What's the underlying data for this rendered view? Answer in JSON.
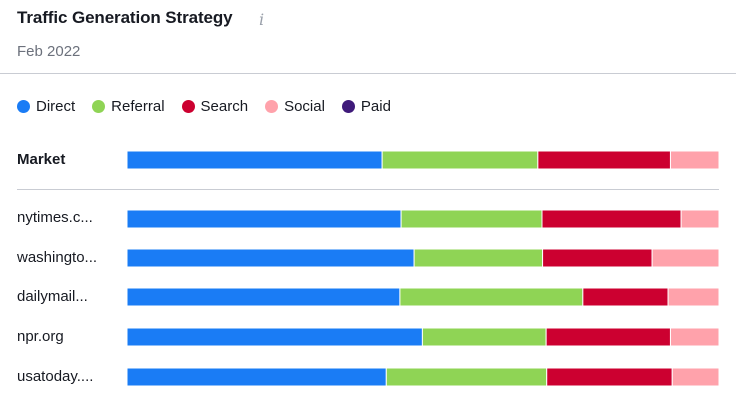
{
  "header": {
    "title": "Traffic Generation Strategy",
    "info_icon": "info-icon",
    "subtitle": "Feb 2022"
  },
  "legend": [
    {
      "name": "Direct",
      "color": "#1a7cf5"
    },
    {
      "name": "Referral",
      "color": "#8fd455"
    },
    {
      "name": "Search",
      "color": "#cc0030"
    },
    {
      "name": "Social",
      "color": "#ffa2ab"
    },
    {
      "name": "Paid",
      "color": "#3f1a7a"
    }
  ],
  "chart_data": {
    "type": "bar",
    "orientation": "horizontal",
    "stacked": true,
    "normalized": true,
    "categories": [
      "Market",
      "nytimes.c...",
      "washingto...",
      "dailymail...",
      "npr.org",
      "usatoday...."
    ],
    "series": [
      {
        "name": "Direct",
        "values": [
          43.1,
          46.3,
          48.5,
          46.1,
          49.9,
          43.8
        ]
      },
      {
        "name": "Referral",
        "values": [
          26.3,
          23.8,
          21.7,
          30.9,
          20.9,
          27.1
        ]
      },
      {
        "name": "Search",
        "values": [
          22.4,
          23.5,
          18.5,
          14.4,
          21.0,
          21.2
        ]
      },
      {
        "name": "Social",
        "values": [
          8.2,
          6.4,
          11.3,
          8.6,
          8.2,
          7.9
        ]
      },
      {
        "name": "Paid",
        "values": [
          0,
          0,
          0,
          0,
          0,
          0
        ]
      }
    ]
  }
}
